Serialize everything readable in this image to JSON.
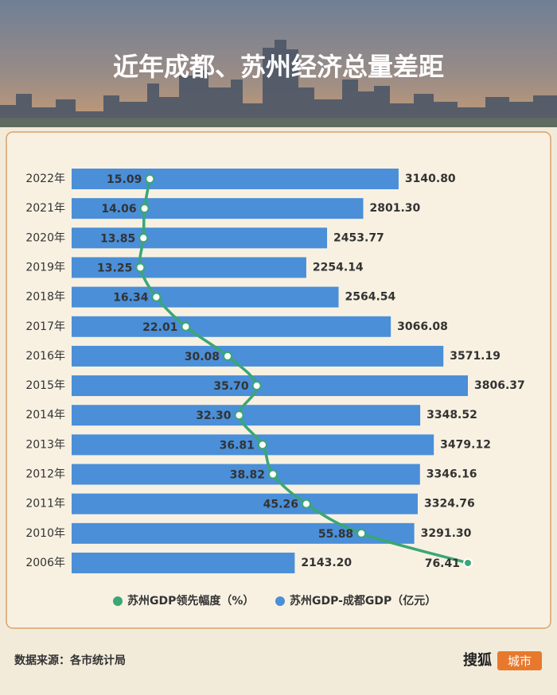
{
  "chart_data": {
    "type": "bar",
    "title": "近年成都、苏州经济总量差距",
    "categories": [
      "2022年",
      "2021年",
      "2020年",
      "2019年",
      "2018年",
      "2017年",
      "2016年",
      "2015年",
      "2014年",
      "2013年",
      "2012年",
      "2011年",
      "2010年",
      "2006年"
    ],
    "series": [
      {
        "name": "苏州GDP领先幅度（%）",
        "type": "line",
        "color": "#3ba676",
        "values": [
          15.09,
          14.06,
          13.85,
          13.25,
          16.34,
          22.01,
          30.08,
          35.7,
          32.3,
          36.81,
          38.82,
          45.26,
          55.88,
          76.41
        ],
        "value_labels": [
          "15.09",
          "14.06",
          "13.85",
          "13.25",
          "16.34",
          "22.01",
          "30.08",
          "35.70",
          "32.30",
          "36.81",
          "38.82",
          "45.26",
          "55.88",
          "76.41"
        ]
      },
      {
        "name": "苏州GDP-成都GDP（亿元）",
        "type": "bar",
        "color": "#4a8fd8",
        "values": [
          3140.8,
          2801.3,
          2453.77,
          2254.14,
          2564.54,
          3066.08,
          3571.19,
          3806.37,
          3348.52,
          3479.12,
          3346.16,
          3324.76,
          3291.3,
          2143.2
        ],
        "value_labels": [
          "3140.80",
          "2801.30",
          "2453.77",
          "2254.14",
          "2564.54",
          "3066.08",
          "3571.19",
          "3806.37",
          "3348.52",
          "3479.12",
          "3346.16",
          "3324.76",
          "3291.30",
          "2143.20"
        ]
      }
    ]
  },
  "footer": {
    "source": "数据来源：各市统计局",
    "brand": "搜狐",
    "brand_tag": "城市"
  }
}
